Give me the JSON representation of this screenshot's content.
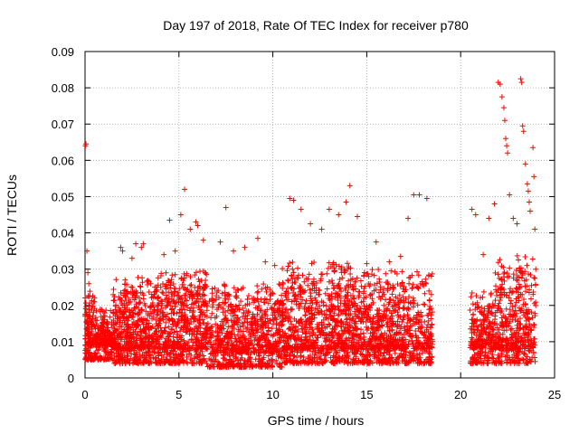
{
  "chart_data": {
    "type": "scatter",
    "title": "Day 197 of 2018, Rate Of TEC Index for receiver p780",
    "xlabel": "GPS time / hours",
    "ylabel": "ROTI / TECUs",
    "xlim": [
      0,
      25
    ],
    "ylim": [
      0,
      0.09
    ],
    "x_ticks": [
      0,
      5,
      10,
      15,
      20,
      25
    ],
    "x_tick_labels": [
      "0",
      "5",
      "10",
      "15",
      "20",
      "25"
    ],
    "y_ticks": [
      0,
      0.01,
      0.02,
      0.03,
      0.04,
      0.05,
      0.06,
      0.07,
      0.08,
      0.09
    ],
    "y_tick_labels": [
      "0",
      "0.01",
      "0.02",
      "0.03",
      "0.04",
      "0.05",
      "0.06",
      "0.07",
      "0.08",
      "0.09"
    ],
    "grid": true,
    "marker": "+",
    "color": "#ff0000",
    "data_gap_hours": [
      18.5,
      20.5
    ],
    "series": [
      {
        "name": "ROTI",
        "points": [
          [
            0.02,
            0.064
          ],
          [
            0.05,
            0.0645
          ],
          [
            0.1,
            0.035
          ],
          [
            0.15,
            0.029
          ],
          [
            0.2,
            0.026
          ],
          [
            0.25,
            0.0225
          ],
          [
            0.5,
            0.021
          ],
          [
            0.6,
            0.0185
          ],
          [
            1.0,
            0.017
          ],
          [
            1.5,
            0.018
          ],
          [
            1.9,
            0.036
          ],
          [
            2.0,
            0.035
          ],
          [
            2.5,
            0.033
          ],
          [
            2.7,
            0.037
          ],
          [
            3.0,
            0.036
          ],
          [
            3.1,
            0.037
          ],
          [
            4.2,
            0.034
          ],
          [
            4.5,
            0.0435
          ],
          [
            4.8,
            0.035
          ],
          [
            5.1,
            0.045
          ],
          [
            5.3,
            0.052
          ],
          [
            5.6,
            0.041
          ],
          [
            5.9,
            0.043
          ],
          [
            6.0,
            0.042
          ],
          [
            6.3,
            0.038
          ],
          [
            7.2,
            0.0375
          ],
          [
            7.5,
            0.047
          ],
          [
            7.9,
            0.035
          ],
          [
            8.5,
            0.036
          ],
          [
            9.2,
            0.0385
          ],
          [
            9.6,
            0.032
          ],
          [
            10.1,
            0.031
          ],
          [
            10.9,
            0.0495
          ],
          [
            11.1,
            0.049
          ],
          [
            11.5,
            0.0465
          ],
          [
            12.0,
            0.0425
          ],
          [
            12.6,
            0.041
          ],
          [
            13.0,
            0.0465
          ],
          [
            13.5,
            0.045
          ],
          [
            13.9,
            0.0485
          ],
          [
            14.1,
            0.053
          ],
          [
            14.5,
            0.0445
          ],
          [
            15.0,
            0.0315
          ],
          [
            15.5,
            0.0375
          ],
          [
            16.2,
            0.032
          ],
          [
            16.8,
            0.0335
          ],
          [
            17.2,
            0.044
          ],
          [
            17.5,
            0.0505
          ],
          [
            17.8,
            0.0505
          ],
          [
            18.2,
            0.0495
          ],
          [
            20.6,
            0.0465
          ],
          [
            20.8,
            0.045
          ],
          [
            21.2,
            0.034
          ],
          [
            21.5,
            0.044
          ],
          [
            21.8,
            0.048
          ],
          [
            22.0,
            0.0815
          ],
          [
            22.1,
            0.081
          ],
          [
            22.2,
            0.0775
          ],
          [
            22.3,
            0.0745
          ],
          [
            22.35,
            0.071
          ],
          [
            22.4,
            0.066
          ],
          [
            22.45,
            0.064
          ],
          [
            22.5,
            0.062
          ],
          [
            22.6,
            0.0505
          ],
          [
            22.8,
            0.044
          ],
          [
            23.0,
            0.0425
          ],
          [
            23.2,
            0.0825
          ],
          [
            23.25,
            0.0815
          ],
          [
            23.3,
            0.0695
          ],
          [
            23.35,
            0.068
          ],
          [
            23.45,
            0.059
          ],
          [
            23.55,
            0.0535
          ],
          [
            23.6,
            0.0515
          ],
          [
            23.65,
            0.0485
          ],
          [
            23.7,
            0.046
          ],
          [
            23.85,
            0.0635
          ],
          [
            23.9,
            0.0555
          ],
          [
            23.95,
            0.041
          ]
        ],
        "bands": [
          {
            "x_range": [
              0,
              0.5
            ],
            "y_range": [
              0.005,
              0.02
            ],
            "count": 160
          },
          {
            "x_range": [
              0.5,
              1.5
            ],
            "y_range": [
              0.005,
              0.015
            ],
            "count": 240
          },
          {
            "x_range": [
              1.5,
              3.5
            ],
            "y_range": [
              0.004,
              0.024
            ],
            "count": 520
          },
          {
            "x_range": [
              3.5,
              6.5
            ],
            "y_range": [
              0.004,
              0.026
            ],
            "count": 700
          },
          {
            "x_range": [
              6.5,
              10.5
            ],
            "y_range": [
              0.003,
              0.022
            ],
            "count": 820
          },
          {
            "x_range": [
              10.5,
              14.5
            ],
            "y_range": [
              0.004,
              0.028
            ],
            "count": 900
          },
          {
            "x_range": [
              14.5,
              18.5
            ],
            "y_range": [
              0.004,
              0.026
            ],
            "count": 820
          },
          {
            "x_range": [
              20.5,
              21.8
            ],
            "y_range": [
              0.004,
              0.02
            ],
            "count": 260
          },
          {
            "x_range": [
              21.8,
              24.0
            ],
            "y_range": [
              0.004,
              0.03
            ],
            "count": 460
          }
        ]
      }
    ]
  }
}
